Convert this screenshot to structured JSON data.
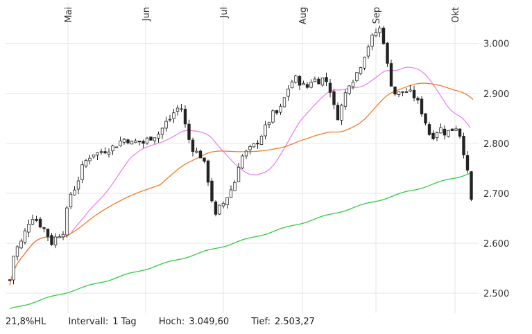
{
  "footer": {
    "range_label": "21,8%HL",
    "interval_label": "Intervall:",
    "interval_value": "1 Tag",
    "high_label": "Hoch:",
    "high_value": "3.049,60",
    "low_label": "Tief:",
    "low_value": "2.503,27"
  },
  "chart_data": {
    "type": "candlestick",
    "months": [
      "Mai",
      "Jun",
      "Jul",
      "Aug",
      "Sep",
      "Okt"
    ],
    "y_ticks": [
      "3.000",
      "2.900",
      "2.800",
      "2.700",
      "2.600",
      "2.500"
    ],
    "y_tick_values": [
      3000,
      2900,
      2800,
      2700,
      2600,
      2500
    ],
    "ylim": [
      2460,
      3080
    ],
    "grid": true,
    "colors": {
      "up": "#ffffff",
      "down": "#222222",
      "ma_short": "#ee82ee",
      "ma_mid": "#f07a2a",
      "ma_long": "#2ecc40"
    },
    "high": 3049.6,
    "low": 2503.27
  }
}
